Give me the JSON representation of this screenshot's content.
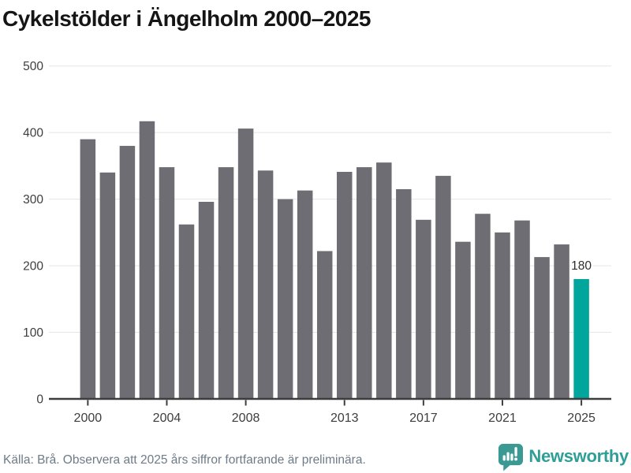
{
  "title": "Cykelstölder i Ängelholm 2000–2025",
  "chart_data": {
    "type": "bar",
    "title": "Cykelstölder i Ängelholm 2000–2025",
    "categories": [
      2000,
      2001,
      2002,
      2003,
      2004,
      2005,
      2006,
      2007,
      2008,
      2009,
      2010,
      2011,
      2012,
      2013,
      2014,
      2015,
      2016,
      2017,
      2018,
      2019,
      2020,
      2021,
      2022,
      2023,
      2024,
      2025
    ],
    "values": [
      390,
      340,
      380,
      417,
      348,
      262,
      296,
      348,
      406,
      343,
      300,
      313,
      222,
      341,
      348,
      355,
      315,
      269,
      335,
      236,
      278,
      250,
      268,
      213,
      232,
      180
    ],
    "x_tick_years": [
      2000,
      2004,
      2008,
      2013,
      2017,
      2021,
      2025
    ],
    "y_ticks": [
      0,
      100,
      200,
      300,
      400,
      500
    ],
    "ylim": [
      0,
      500
    ],
    "grid": "horizontal",
    "legend": "none",
    "bar_color": "#6e6d73",
    "highlight_index": 25,
    "highlight_color": "#00a59b",
    "highlight_label": "180",
    "axis_color": "#3d3d3d",
    "gridline_color": "#e5e5e7",
    "annotation_color": "#2e2e2e"
  },
  "footer": {
    "source_text": "Källa: Brå. Observera att 2025 års siffror fortfarande är preliminära.",
    "brand_name": "Newsworthy",
    "brand_color": "#2f9e96",
    "logo_icon": "newsworthy-speech-bubble-bar-chart-icon"
  }
}
